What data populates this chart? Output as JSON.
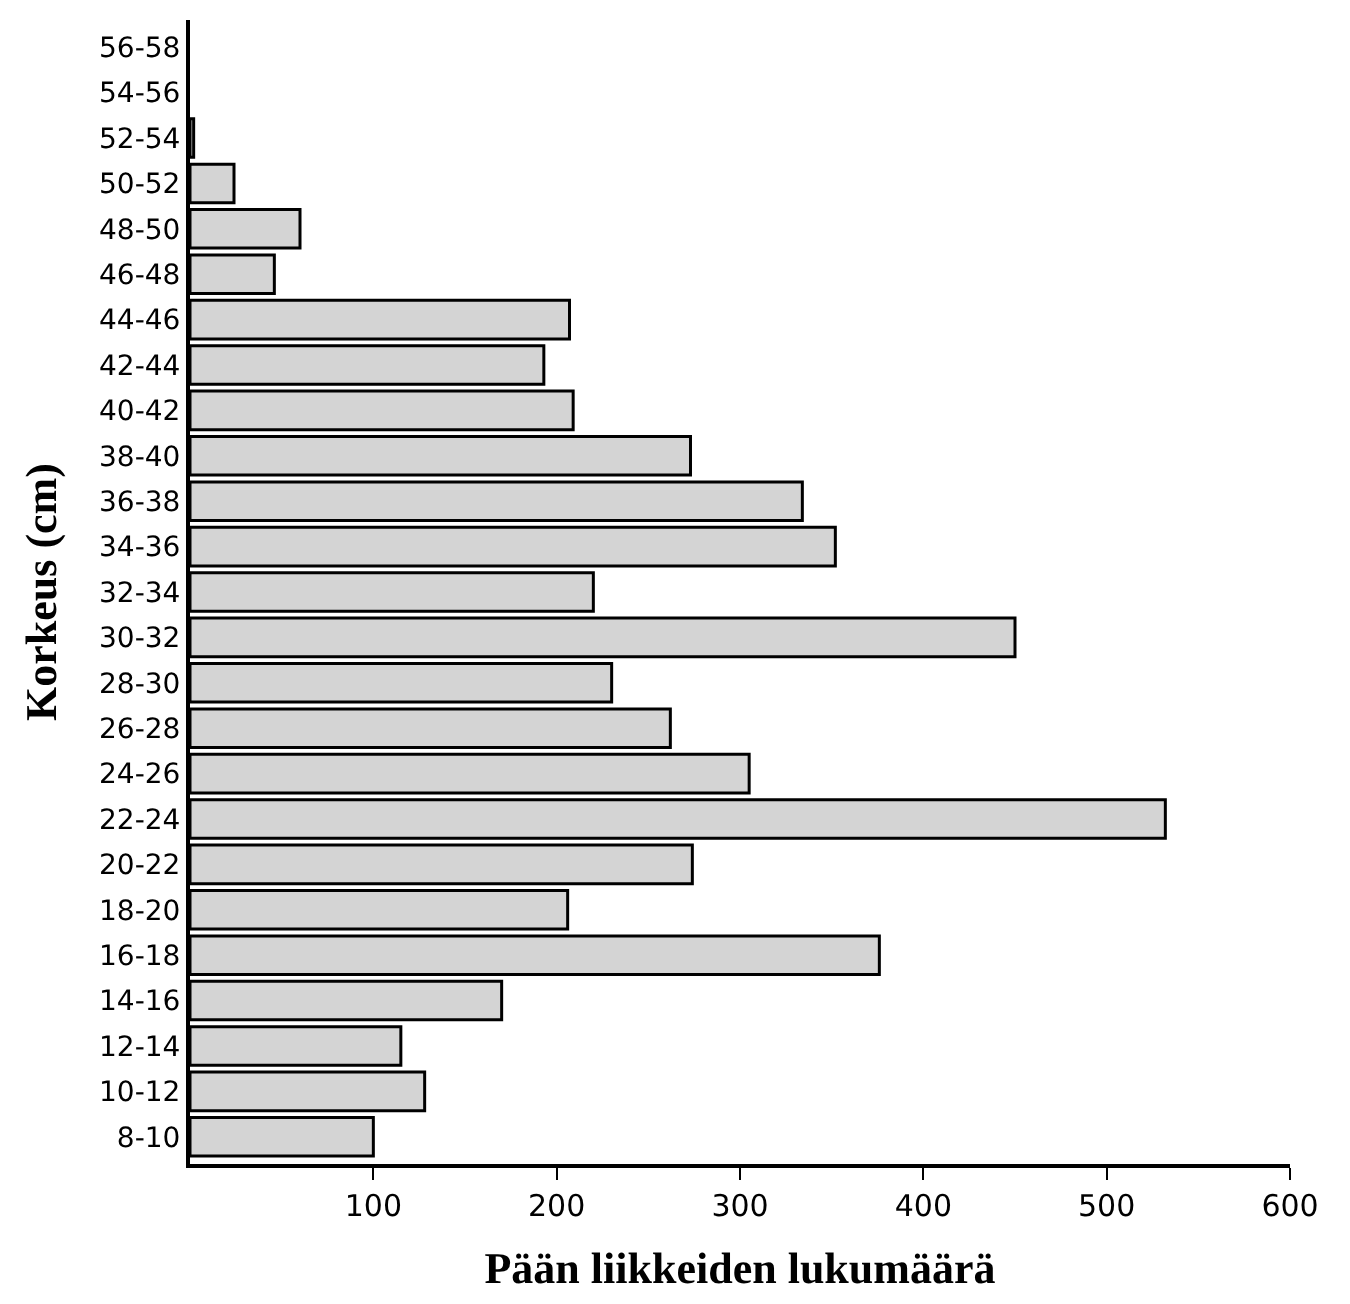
{
  "chart_data": {
    "type": "bar",
    "orientation": "horizontal",
    "xlabel": "Pään liikkeiden lukumäärä",
    "ylabel": "Korkeus (cm)",
    "categories": [
      "56-58",
      "54-56",
      "52-54",
      "50-52",
      "48-50",
      "46-48",
      "44-46",
      "42-44",
      "40-42",
      "38-40",
      "36-38",
      "34-36",
      "32-34",
      "30-32",
      "28-30",
      "26-28",
      "24-26",
      "22-24",
      "20-22",
      "18-20",
      "16-18",
      "14-16",
      "12-14",
      "10-12",
      "8-10"
    ],
    "values": [
      0,
      0,
      2,
      24,
      60,
      46,
      207,
      193,
      209,
      273,
      334,
      352,
      220,
      450,
      230,
      262,
      305,
      532,
      274,
      206,
      376,
      170,
      115,
      128,
      100
    ],
    "color": "#d4d4d4",
    "xlim": [
      0,
      600
    ],
    "xticks": [
      100,
      200,
      300,
      400,
      500,
      600
    ],
    "legend": false
  }
}
